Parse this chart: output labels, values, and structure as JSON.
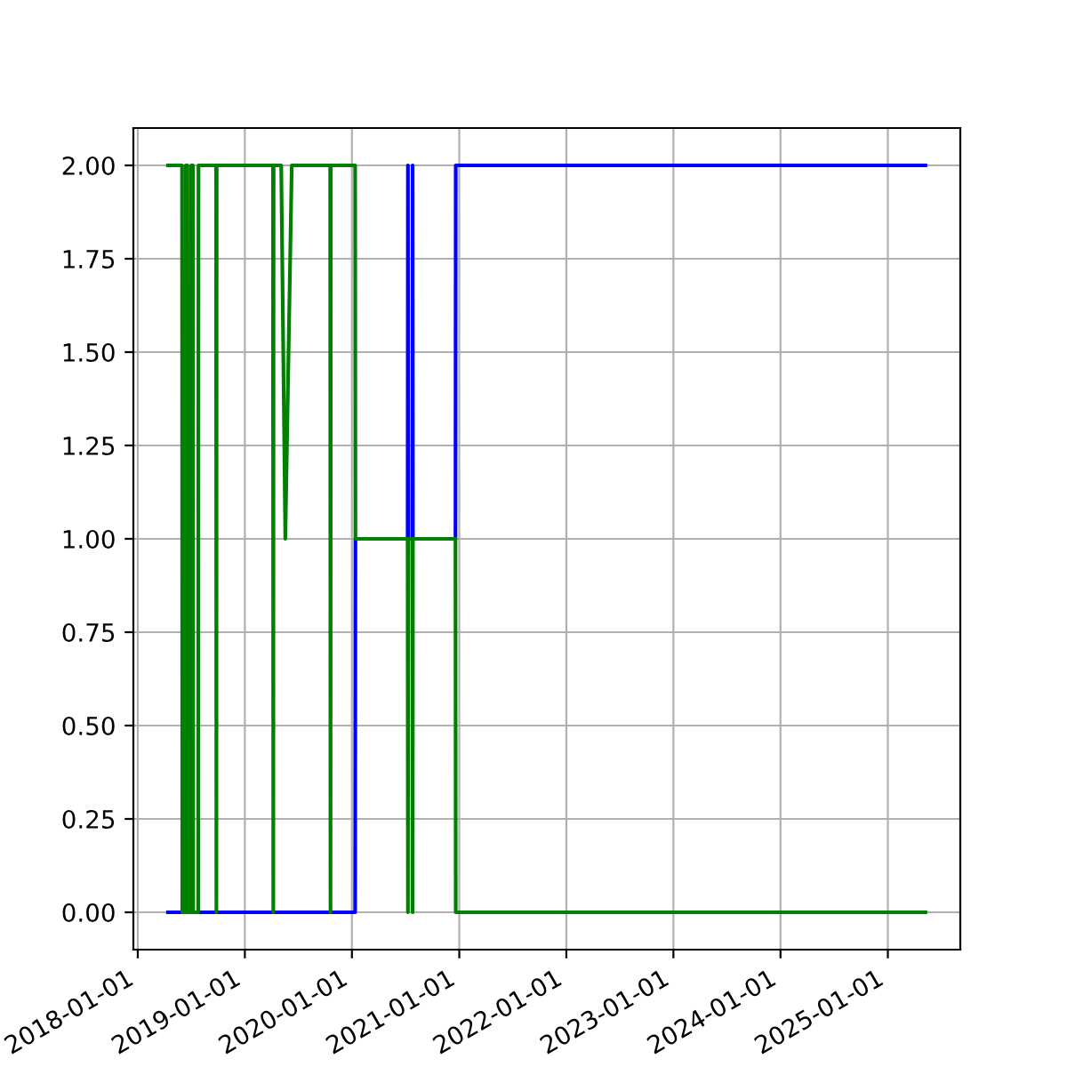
{
  "chart_data": {
    "type": "line",
    "x": [
      "2018-04-14",
      "2018-06-01",
      "2018-06-02",
      "2018-06-13",
      "2018-06-14",
      "2018-06-19",
      "2018-06-20",
      "2018-07-01",
      "2018-07-02",
      "2018-07-08",
      "2018-07-09",
      "2018-07-26",
      "2018-07-27",
      "2018-09-25",
      "2018-09-26",
      "2018-09-27",
      "2019-04-07",
      "2019-04-08",
      "2019-04-09",
      "2019-05-05",
      "2019-05-19",
      "2019-06-10",
      "2019-10-19",
      "2019-10-20",
      "2019-10-21",
      "2020-01-12",
      "2020-01-13",
      "2020-07-09",
      "2020-07-10",
      "2020-07-11",
      "2020-07-25",
      "2020-07-26",
      "2020-07-27",
      "2020-12-19",
      "2020-12-20",
      "2025-05-09"
    ],
    "series": [
      {
        "color": "#0000ff",
        "values": [
          0,
          0,
          null,
          null,
          null,
          null,
          null,
          null,
          null,
          null,
          null,
          null,
          0,
          0,
          null,
          0,
          0,
          null,
          0,
          0,
          0,
          0,
          0,
          null,
          0,
          0,
          1,
          1,
          2,
          1,
          1,
          2,
          1,
          1,
          2,
          2
        ]
      },
      {
        "color": "#008000",
        "values": [
          2,
          2,
          0,
          0,
          2,
          2,
          0,
          0,
          2,
          2,
          0,
          0,
          2,
          2,
          0,
          2,
          2,
          0,
          2,
          2,
          1,
          2,
          2,
          0,
          2,
          2,
          1,
          1,
          0,
          1,
          1,
          0,
          1,
          1,
          0,
          0
        ]
      }
    ],
    "xlim": [
      "2017-12-17",
      "2025-09-05"
    ],
    "xticks": [
      "2018-01-01",
      "2019-01-01",
      "2020-01-01",
      "2021-01-01",
      "2022-01-01",
      "2023-01-01",
      "2024-01-01",
      "2025-01-01"
    ],
    "ylim": [
      -0.1,
      2.1
    ],
    "yticks": [
      {
        "value": 0,
        "label": "0.00"
      },
      {
        "value": 0.25,
        "label": "0.25"
      },
      {
        "value": 0.5,
        "label": "0.50"
      },
      {
        "value": 0.75,
        "label": "0.75"
      },
      {
        "value": 1,
        "label": "1.00"
      },
      {
        "value": 1.25,
        "label": "1.25"
      },
      {
        "value": 1.5,
        "label": "1.50"
      },
      {
        "value": 1.75,
        "label": "1.75"
      },
      {
        "value": 2,
        "label": "2.00"
      }
    ],
    "grid": true,
    "line_style": "solid"
  }
}
